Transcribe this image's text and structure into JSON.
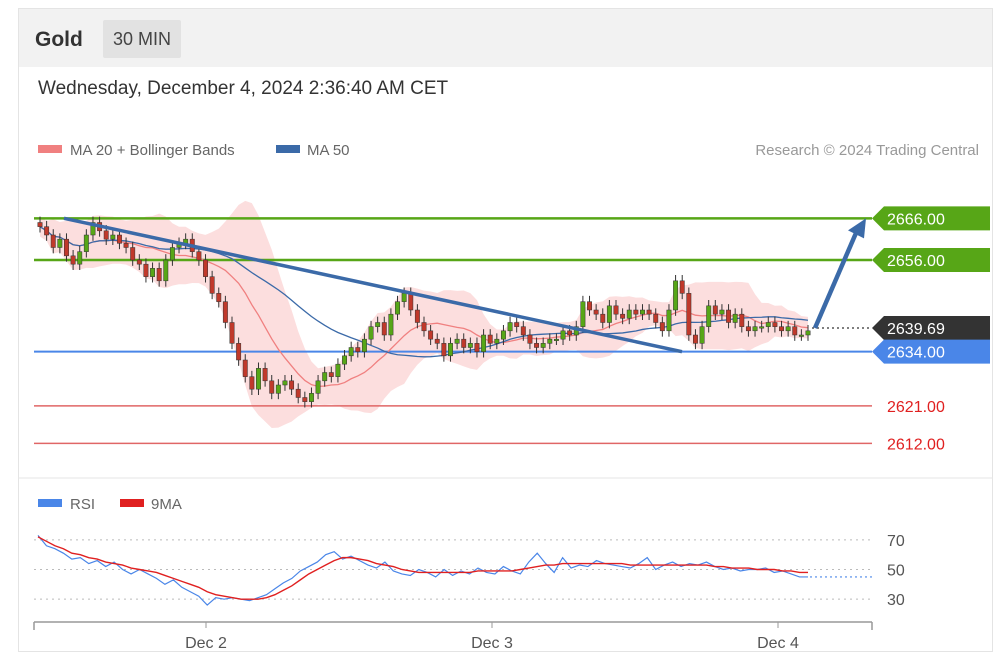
{
  "header": {
    "symbol": "Gold",
    "timeframe": "30 MIN",
    "datetime": "Wednesday, December 4, 2024 2:36:40 AM CET"
  },
  "legend": {
    "ma20_label": "MA 20 + Bollinger Bands",
    "ma50_label": "MA 50",
    "credit": "Research © 2024 Trading Central",
    "rsi_label": "RSI",
    "rsi_ma_label": "9MA"
  },
  "colors": {
    "ma20": "#f08080",
    "ma50": "#3b6aa8",
    "green_level": "#57a617",
    "blue_level": "#4a86e8",
    "red_level": "#e06666",
    "current_price_bg": "#333333",
    "candle_up": "#57a617",
    "candle_down": "#c0392b",
    "rsi": "#4a86e8",
    "rsi_ma": "#e02020"
  },
  "chart_data": [
    {
      "type": "candlestick",
      "title": "Gold",
      "timeframe": "30 MIN",
      "x_labels": [
        "Dec 2",
        "Dec 3",
        "Dec 4"
      ],
      "ylim": [
        2608,
        2674
      ],
      "levels": [
        {
          "value": 2666.0,
          "label": "2666.00",
          "kind": "resistance",
          "color": "#57a617"
        },
        {
          "value": 2656.0,
          "label": "2656.00",
          "kind": "resistance",
          "color": "#57a617"
        },
        {
          "value": 2639.69,
          "label": "2639.69",
          "kind": "current",
          "color": "#333333"
        },
        {
          "value": 2634.0,
          "label": "2634.00",
          "kind": "pivot",
          "color": "#4a86e8"
        },
        {
          "value": 2621.0,
          "label": "2621.00",
          "kind": "support",
          "color": "#e06666"
        },
        {
          "value": 2612.0,
          "label": "2612.00",
          "kind": "support",
          "color": "#e06666"
        }
      ],
      "closes": [
        2664,
        2662,
        2659,
        2661,
        2657,
        2655,
        2658,
        2662,
        2665,
        2663,
        2661,
        2662,
        2660,
        2659,
        2656,
        2655,
        2652,
        2654,
        2651,
        2656,
        2659,
        2660,
        2661,
        2658,
        2656,
        2652,
        2648,
        2646,
        2641,
        2636,
        2632,
        2628,
        2625,
        2630,
        2627,
        2624,
        2626,
        2627,
        2625,
        2623,
        2622,
        2624,
        2627,
        2629,
        2628,
        2631,
        2633,
        2635,
        2634,
        2637,
        2640,
        2641,
        2638,
        2643,
        2646,
        2648,
        2644,
        2641,
        2639,
        2637,
        2636,
        2633,
        2636,
        2637,
        2635,
        2636,
        2634,
        2638,
        2636,
        2637,
        2639,
        2641,
        2640,
        2638,
        2636,
        2635,
        2636,
        2637,
        2637,
        2639,
        2638,
        2640,
        2646,
        2644,
        2643,
        2641,
        2645,
        2643,
        2642,
        2644,
        2643,
        2644,
        2643,
        2641,
        2639,
        2644,
        2651,
        2648,
        2638,
        2636,
        2640,
        2645,
        2643,
        2644,
        2641,
        2643,
        2640,
        2639,
        2640,
        2640,
        2641,
        2640,
        2639,
        2640,
        2638,
        2638,
        2639
      ],
      "ma50_label": "MA 50",
      "ma20_label": "MA 20 + Bollinger Bands",
      "trendline": {
        "from": 2666,
        "to": 2634
      },
      "projection": {
        "from": 2639.69,
        "to": 2666
      }
    },
    {
      "type": "line",
      "title": "",
      "series": [
        {
          "name": "RSI"
        },
        {
          "name": "9MA"
        }
      ],
      "ylim": [
        20,
        80
      ],
      "yticks": [
        30,
        50,
        70
      ],
      "rsi_values": [
        73,
        66,
        64,
        61,
        57,
        58,
        54,
        56,
        52,
        55,
        50,
        47,
        50,
        47,
        44,
        40,
        43,
        38,
        35,
        32,
        26,
        31,
        30,
        31,
        30,
        29,
        31,
        33,
        37,
        41,
        44,
        49,
        52,
        55,
        60,
        62,
        57,
        59,
        56,
        53,
        51,
        55,
        49,
        47,
        46,
        50,
        48,
        45,
        50,
        46,
        49,
        47,
        51,
        48,
        47,
        52,
        49,
        47,
        55,
        61,
        54,
        48,
        58,
        51,
        53,
        52,
        56,
        54,
        53,
        52,
        51,
        54,
        58,
        50,
        53,
        55,
        52,
        54,
        53,
        55,
        52,
        50,
        51,
        49,
        50,
        50,
        51,
        48,
        49,
        47,
        45,
        45
      ],
      "ma9_values": [
        72,
        69,
        66,
        64,
        61,
        60,
        58,
        57,
        55,
        54,
        53,
        51,
        50,
        49,
        48,
        46,
        44,
        42,
        40,
        38,
        35,
        33,
        32,
        31,
        30,
        30,
        30,
        31,
        33,
        36,
        39,
        43,
        47,
        50,
        53,
        56,
        58,
        58,
        57,
        56,
        54,
        53,
        52,
        50,
        49,
        48,
        48,
        48,
        48,
        48,
        48,
        48,
        49,
        49,
        49,
        49,
        49,
        50,
        51,
        52,
        53,
        53,
        54,
        54,
        54,
        54,
        54,
        54,
        54,
        54,
        53,
        53,
        53,
        53,
        53,
        53,
        53,
        53,
        53,
        53,
        52,
        52,
        51,
        51,
        51,
        50,
        50,
        50,
        49,
        49,
        48,
        48
      ]
    }
  ]
}
